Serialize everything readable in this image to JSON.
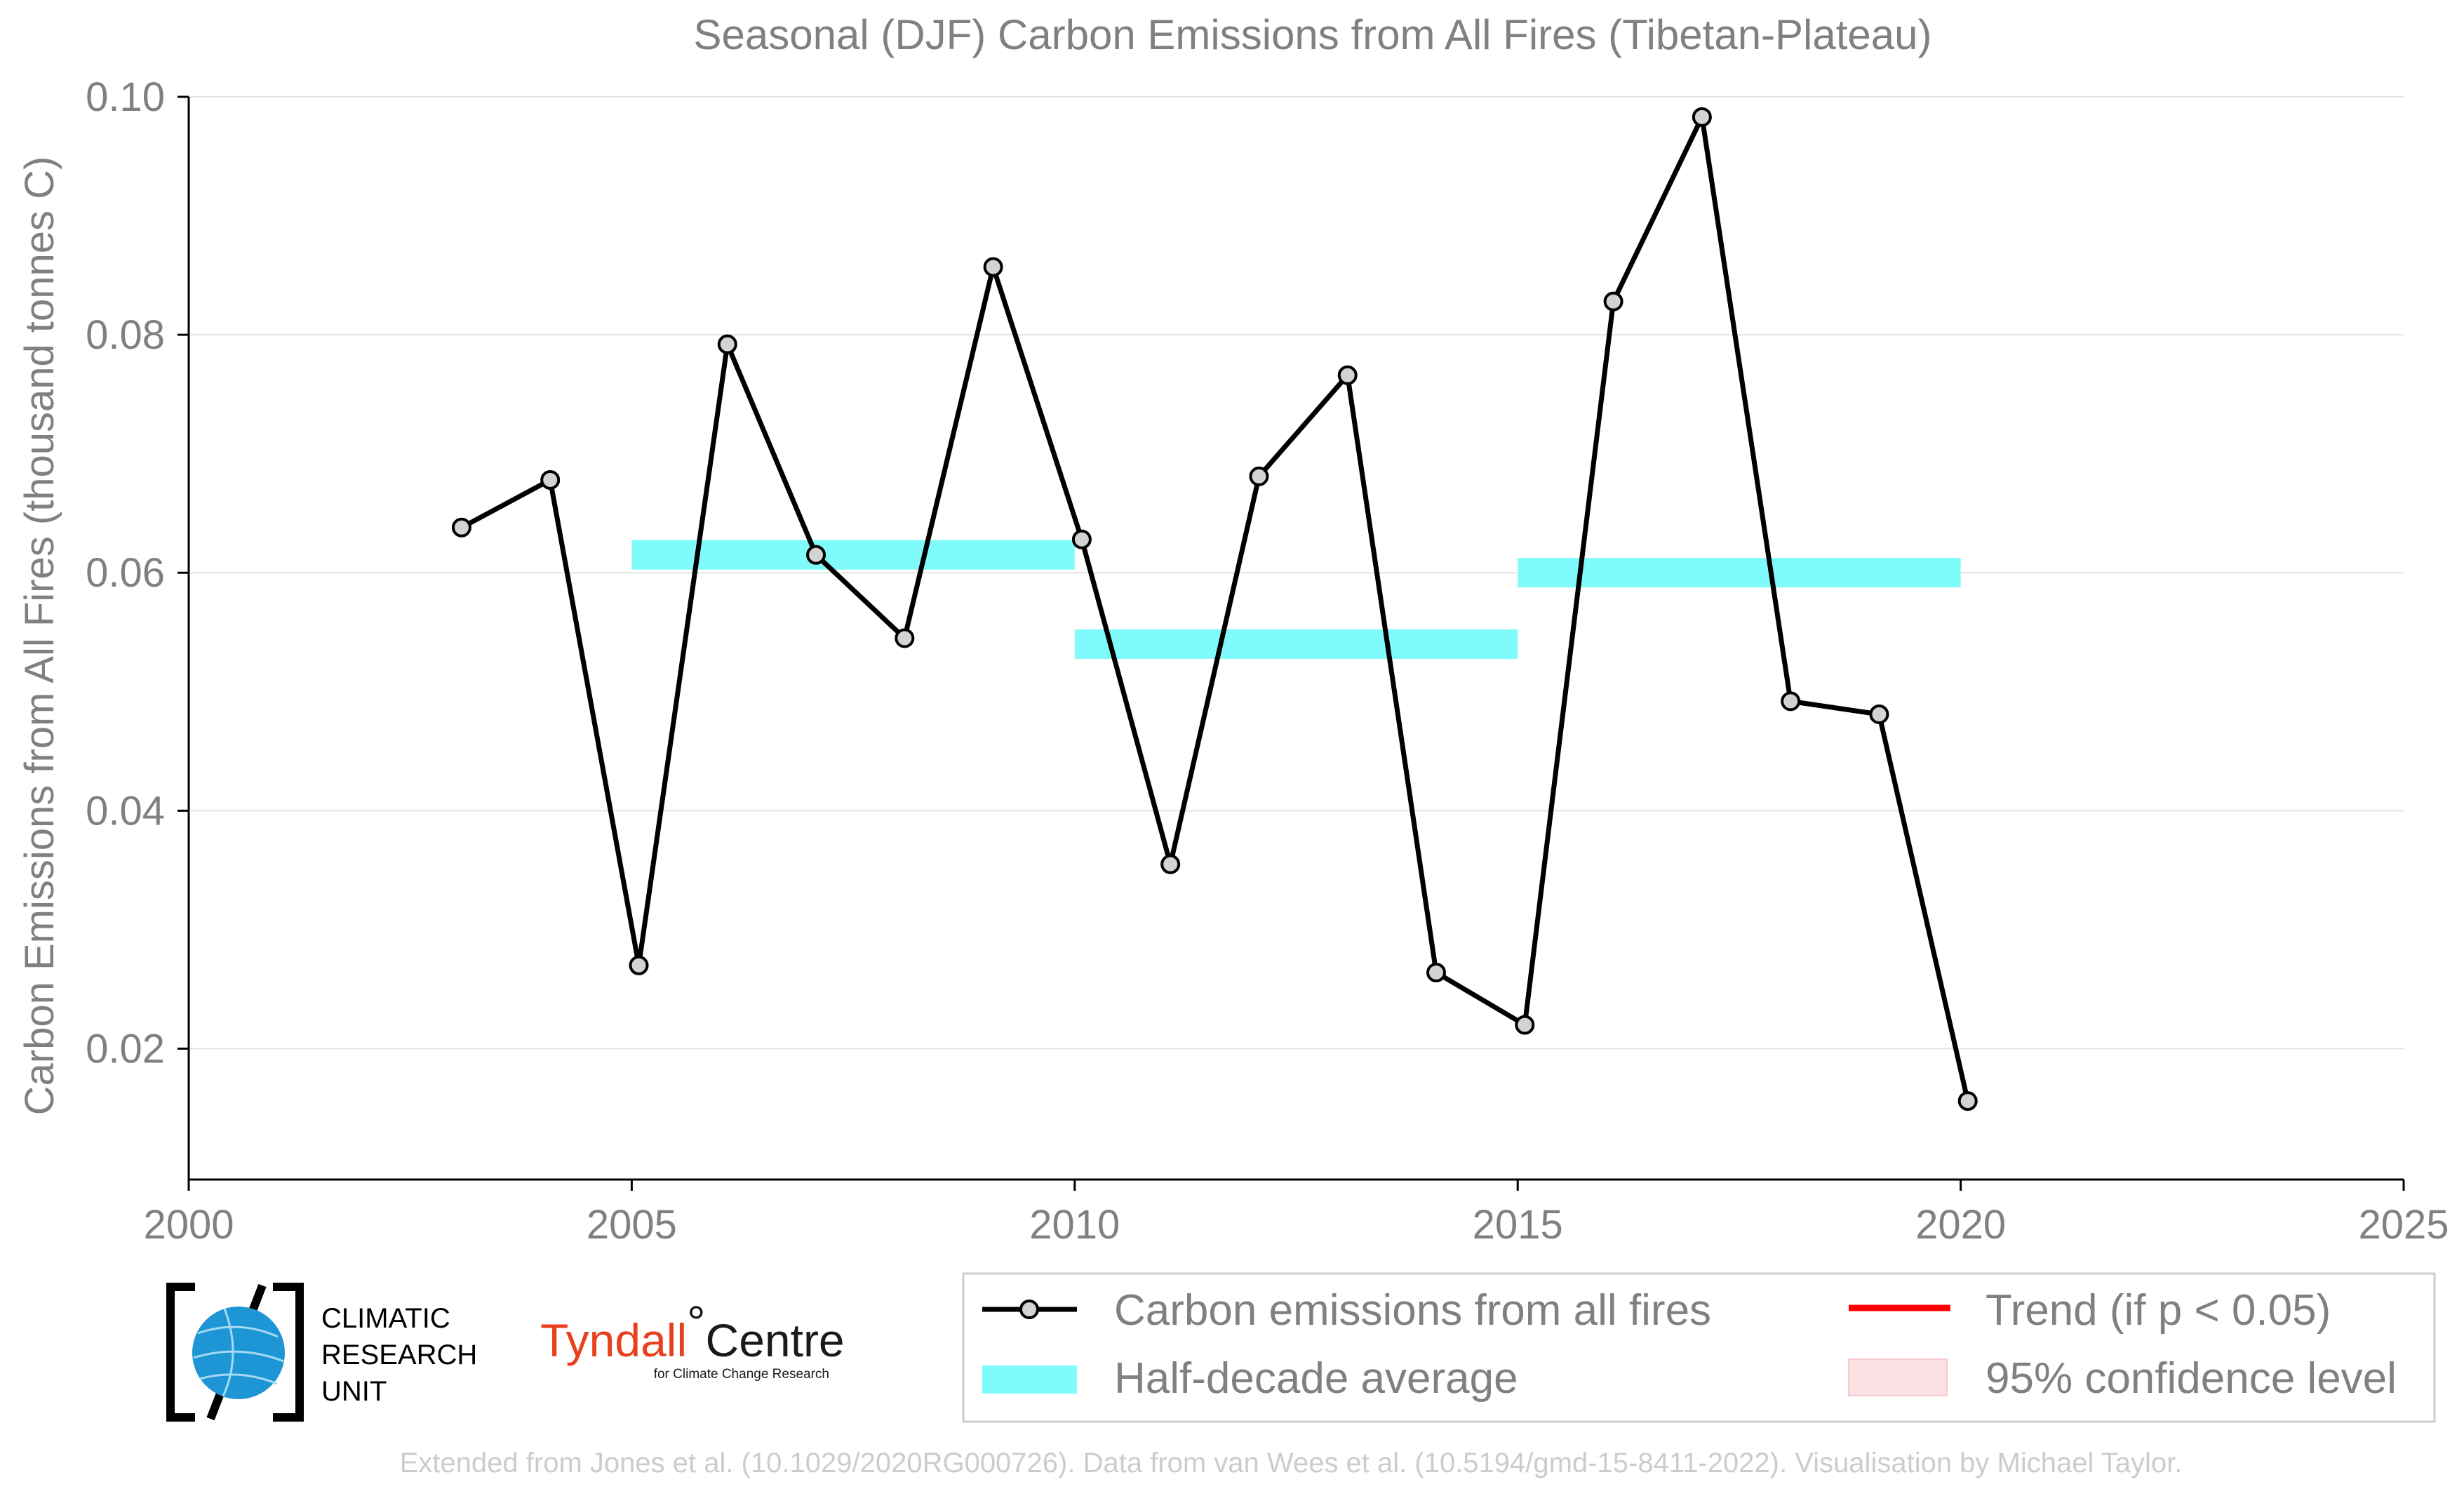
{
  "chart_data": {
    "type": "line",
    "title": "Seasonal (DJF) Carbon Emissions from All Fires (Tibetan-Plateau)",
    "xlabel": "",
    "ylabel": "Carbon Emissions from All Fires (thousand tonnes C)",
    "xlim": [
      2000,
      2025
    ],
    "ylim": [
      0.009,
      0.1
    ],
    "xticks": [
      2000,
      2005,
      2010,
      2015,
      2020,
      2025
    ],
    "yticks": [
      0.02,
      0.04,
      0.06,
      0.08,
      0.1
    ],
    "ytick_labels": [
      "0.02",
      "0.04",
      "0.06",
      "0.08",
      "0.10"
    ],
    "grid": "horizontal",
    "series": [
      {
        "name": "Carbon emissions from all fires",
        "color": "#000000",
        "marker_color": "#d3d3d3",
        "x": [
          2003.08,
          2004.08,
          2005.08,
          2006.08,
          2007.08,
          2008.08,
          2009.08,
          2010.08,
          2011.08,
          2012.08,
          2013.08,
          2014.08,
          2015.08,
          2016.08,
          2017.08,
          2018.08,
          2019.08,
          2020.08
        ],
        "values": [
          0.0638,
          0.0678,
          0.027,
          0.0792,
          0.0615,
          0.0545,
          0.0857,
          0.0628,
          0.0355,
          0.0681,
          0.0766,
          0.0264,
          0.022,
          0.0828,
          0.0983,
          0.0492,
          0.0481,
          0.0156
        ]
      }
    ],
    "half_decade_average": {
      "name": "Half-decade average",
      "color": "#7ffbfc",
      "segments": [
        {
          "x0": 2005,
          "x1": 2010,
          "value": 0.0615
        },
        {
          "x0": 2010,
          "x1": 2015,
          "value": 0.054
        },
        {
          "x0": 2015,
          "x1": 2020,
          "value": 0.06
        }
      ]
    },
    "legend": {
      "placement": "bottom-right",
      "entries": [
        {
          "label": "Carbon emissions from all fires",
          "kind": "line-marker",
          "color": "#000000"
        },
        {
          "label": "Trend (if p < 0.05)",
          "kind": "line",
          "color": "#ff0000"
        },
        {
          "label": "Half-decade average",
          "kind": "band",
          "color": "#7ffbfc"
        },
        {
          "label": "95% confidence level",
          "kind": "patch",
          "color": "#fde0e3"
        }
      ]
    }
  },
  "logos": {
    "cru_lines": [
      "CLIMATIC",
      "RESEARCH",
      "UNIT"
    ],
    "tyndall_name": "Tyndall",
    "tyndall_degree": "°",
    "tyndall_centre": "Centre",
    "tyndall_sub": "for Climate Change Research"
  },
  "footer": "Extended from Jones et al. (10.1029/2020RG000726). Data from van Wees et al. (10.5194/gmd-15-8411-2022). Visualisation by Michael Taylor."
}
